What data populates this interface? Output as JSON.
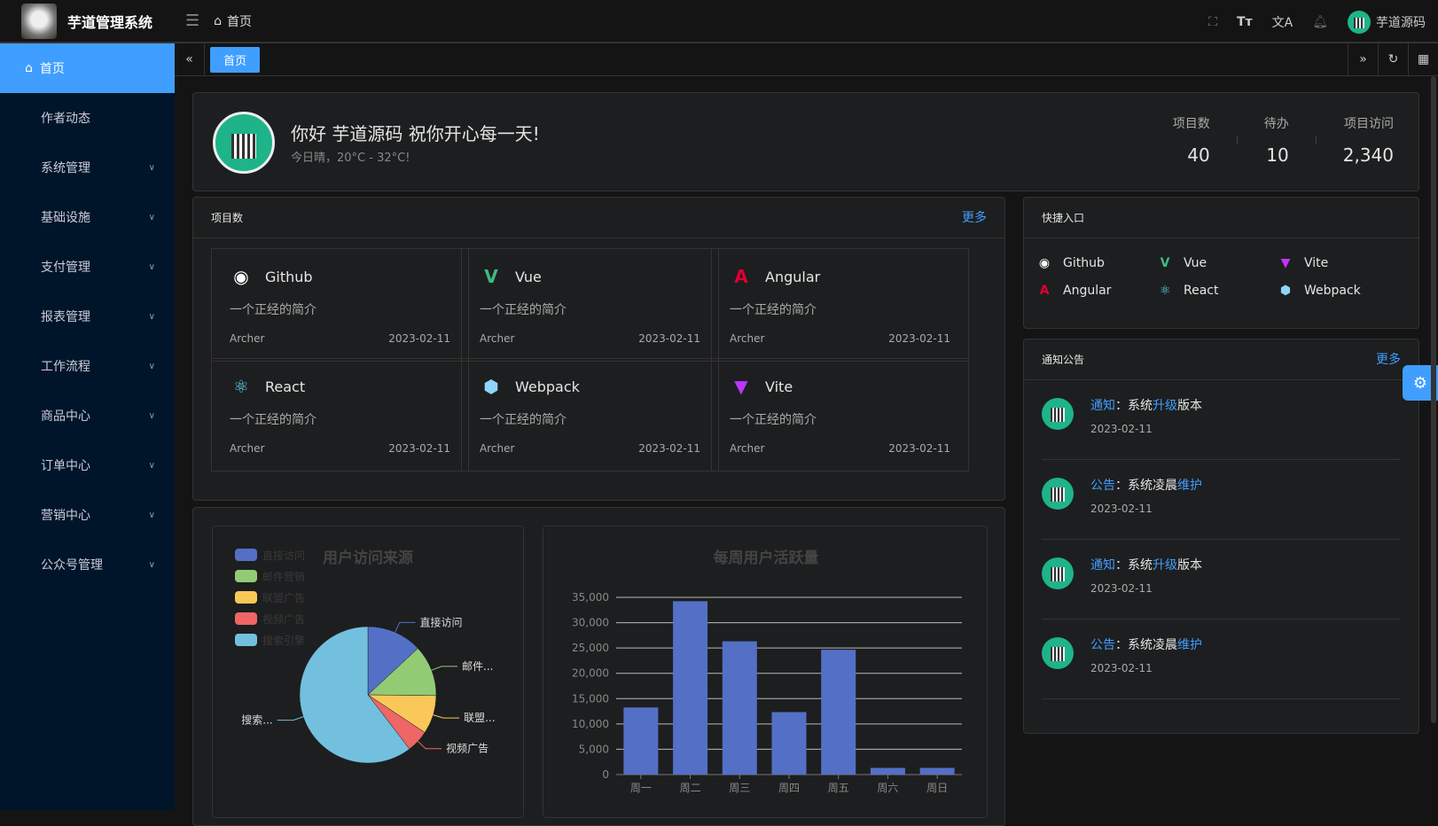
{
  "app": {
    "title": "芋道管理系统",
    "breadcrumb": "首页",
    "user": "芋道源码"
  },
  "sidebar": {
    "items": [
      {
        "label": "首页",
        "active": true
      },
      {
        "label": "作者动态"
      },
      {
        "label": "系统管理",
        "expandable": true
      },
      {
        "label": "基础设施",
        "expandable": true
      },
      {
        "label": "支付管理",
        "expandable": true
      },
      {
        "label": "报表管理",
        "expandable": true
      },
      {
        "label": "工作流程",
        "expandable": true
      },
      {
        "label": "商品中心",
        "expandable": true
      },
      {
        "label": "订单中心",
        "expandable": true
      },
      {
        "label": "营销中心",
        "expandable": true
      },
      {
        "label": "公众号管理",
        "expandable": true
      }
    ]
  },
  "tabs": [
    {
      "label": "首页",
      "active": true
    }
  ],
  "welcome": {
    "greeting": "你好 芋道源码 祝你开心每一天!",
    "weather": "今日晴，20°C - 32°C!",
    "stats": [
      {
        "label": "项目数",
        "value": "40"
      },
      {
        "label": "待办",
        "value": "10"
      },
      {
        "label": "项目访问",
        "value": "2,340"
      }
    ]
  },
  "projects": {
    "title": "项目数",
    "more": "更多",
    "items": [
      {
        "name": "Github",
        "desc": "一个正经的简介",
        "author": "Archer",
        "date": "2023-02-11",
        "icon": "github-icon",
        "color": "#ffffff"
      },
      {
        "name": "Vue",
        "desc": "一个正经的简介",
        "author": "Archer",
        "date": "2023-02-11",
        "icon": "vue-icon",
        "color": "#42b883"
      },
      {
        "name": "Angular",
        "desc": "一个正经的简介",
        "author": "Archer",
        "date": "2023-02-11",
        "icon": "angular-icon",
        "color": "#dd0031"
      },
      {
        "name": "React",
        "desc": "一个正经的简介",
        "author": "Archer",
        "date": "2023-02-11",
        "icon": "react-icon",
        "color": "#61dafb"
      },
      {
        "name": "Webpack",
        "desc": "一个正经的简介",
        "author": "Archer",
        "date": "2023-02-11",
        "icon": "webpack-icon",
        "color": "#8ed6fb"
      },
      {
        "name": "Vite",
        "desc": "一个正经的简介",
        "author": "Archer",
        "date": "2023-02-11",
        "icon": "vite-icon",
        "color": "#bd34fe"
      }
    ]
  },
  "shortcuts": {
    "title": "快捷入口",
    "items": [
      {
        "name": "Github"
      },
      {
        "name": "Vue"
      },
      {
        "name": "Vite"
      },
      {
        "name": "Angular"
      },
      {
        "name": "React"
      },
      {
        "name": "Webpack"
      }
    ]
  },
  "notices": {
    "title": "通知公告",
    "more": "更多",
    "items": [
      {
        "type": "通知",
        "sep": "：",
        "pre": "系统",
        "hl": "升级",
        "post": "版本",
        "date": "2023-02-11"
      },
      {
        "type": "公告",
        "sep": "：",
        "pre": "系统凌晨",
        "hl": "维护",
        "post": "",
        "date": "2023-02-11"
      },
      {
        "type": "通知",
        "sep": "：",
        "pre": "系统",
        "hl": "升级",
        "post": "版本",
        "date": "2023-02-11"
      },
      {
        "type": "公告",
        "sep": "：",
        "pre": "系统凌晨",
        "hl": "维护",
        "post": "",
        "date": "2023-02-11"
      }
    ]
  },
  "chart_data": [
    {
      "type": "pie",
      "title": "用户访问来源",
      "legend_position": "top-left",
      "slices": [
        {
          "name": "直接访问",
          "value": 335,
          "color": "#5470c6",
          "label": "直接访问"
        },
        {
          "name": "邮件营销",
          "value": 310,
          "color": "#91cc75",
          "label": "邮件..."
        },
        {
          "name": "联盟广告",
          "value": 234,
          "color": "#fac858",
          "label": "联盟..."
        },
        {
          "name": "视频广告",
          "value": 135,
          "color": "#ee6666",
          "label": "视频广告"
        },
        {
          "name": "搜索引擎",
          "value": 1548,
          "color": "#73c0de",
          "label": "搜索..."
        }
      ]
    },
    {
      "type": "bar",
      "title": "每周用户活跃量",
      "categories": [
        "周一",
        "周二",
        "周三",
        "周四",
        "周五",
        "周六",
        "周日"
      ],
      "values": [
        13253,
        34235,
        26321,
        12340,
        24643,
        1322,
        1324
      ],
      "ylim": [
        0,
        35000
      ],
      "yticks": [
        "0",
        "5,000",
        "10,000",
        "15,000",
        "20,000",
        "25,000",
        "30,000",
        "35,000"
      ],
      "color": "#5470c6",
      "grid": true
    }
  ]
}
